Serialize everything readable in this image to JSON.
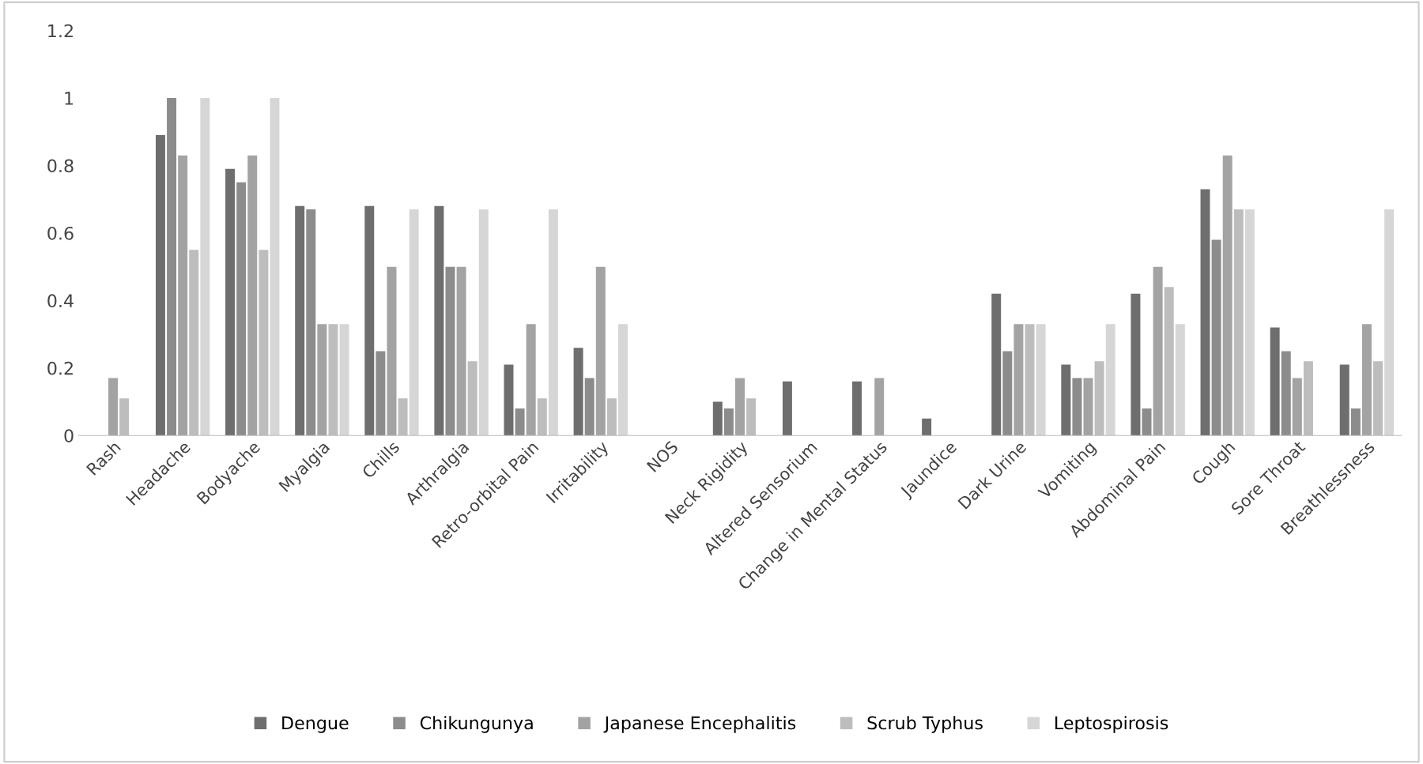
{
  "chart_data": {
    "type": "bar",
    "categories": [
      "Rash",
      "Headache",
      "Bodyache",
      "Myalgia",
      "Chills",
      "Arthralgia",
      "Retro-orbital Pain",
      "Irritability",
      "NOS",
      "Neck Rigidity",
      "Altered Sensorium",
      "Change in Mental Status",
      "Jaundice",
      "Dark Urine",
      "Vomiting",
      "Abdominal Pain",
      "Cough",
      "Sore Throat",
      "Breathlessness"
    ],
    "series": [
      {
        "name": "Dengue",
        "color": "#6e6e6e",
        "values": [
          0,
          0.89,
          0.79,
          0.68,
          0.68,
          0.68,
          0.21,
          0.26,
          0,
          0.1,
          0.16,
          0.16,
          0.05,
          0.42,
          0.21,
          0.42,
          0.73,
          0.32,
          0.21
        ]
      },
      {
        "name": "Chikungunya",
        "color": "#8c8c8c",
        "values": [
          0,
          1,
          0.75,
          0.67,
          0.25,
          0.5,
          0.08,
          0.17,
          0,
          0.08,
          0,
          0,
          0,
          0.25,
          0.17,
          0.08,
          0.58,
          0.25,
          0.08
        ]
      },
      {
        "name": "Japanese Encephalitis",
        "color": "#a3a3a3",
        "values": [
          0.17,
          0.83,
          0.83,
          0.33,
          0.5,
          0.5,
          0.33,
          0.5,
          0,
          0.17,
          0,
          0.17,
          0,
          0.33,
          0.17,
          0.5,
          0.83,
          0.17,
          0.33
        ]
      },
      {
        "name": "Scrub Typhus",
        "color": "#bdbdbd",
        "values": [
          0.11,
          0.55,
          0.55,
          0.33,
          0.11,
          0.22,
          0.11,
          0.11,
          0,
          0.11,
          0,
          0,
          0,
          0.33,
          0.22,
          0.44,
          0.67,
          0.22,
          0.22
        ]
      },
      {
        "name": "Leptospirosis",
        "color": "#d6d6d6",
        "values": [
          0,
          1,
          1,
          0.33,
          0.67,
          0.67,
          0.67,
          0.33,
          0,
          0,
          0,
          0,
          0,
          0.33,
          0.33,
          0.33,
          0.67,
          0,
          0.67
        ]
      }
    ],
    "ylim": [
      0,
      1.2
    ],
    "yticks": [
      0,
      0.2,
      0.4,
      0.6,
      0.8,
      1,
      1.2
    ],
    "grid": false,
    "legend": "bottom"
  }
}
